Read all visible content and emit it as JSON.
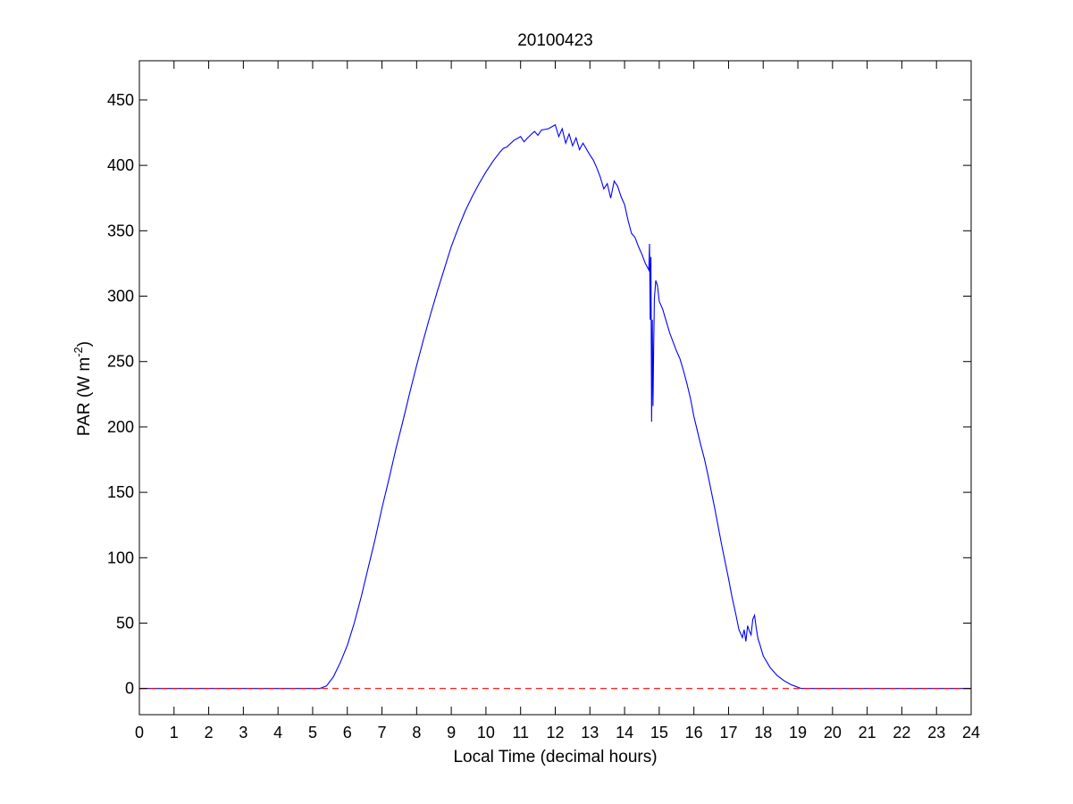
{
  "chart_data": {
    "type": "line",
    "title": "20100423",
    "xlabel": "Local Time (decimal hours)",
    "ylabel": {
      "prefix": "PAR (W m",
      "superscript": "-2",
      "suffix": ")"
    },
    "xlim": [
      0,
      24
    ],
    "ylim": [
      -20,
      480
    ],
    "xticks": [
      0,
      1,
      2,
      3,
      4,
      5,
      6,
      7,
      8,
      9,
      10,
      11,
      12,
      13,
      14,
      15,
      16,
      17,
      18,
      19,
      20,
      21,
      22,
      23,
      24
    ],
    "yticks": [
      0,
      50,
      100,
      150,
      200,
      250,
      300,
      350,
      400,
      450
    ],
    "grid": false,
    "colors": {
      "par": "#0000ff",
      "zero": "#ff0000",
      "axes": "#000000"
    },
    "series": [
      {
        "key": "par",
        "style": "solid",
        "x": [
          0,
          1,
          2,
          3,
          4,
          5,
          5.2,
          5.4,
          5.6,
          5.8,
          6,
          6.2,
          6.4,
          6.6,
          6.8,
          7,
          7.2,
          7.4,
          7.6,
          7.8,
          8,
          8.2,
          8.4,
          8.6,
          8.8,
          9,
          9.2,
          9.4,
          9.6,
          9.8,
          10,
          10.2,
          10.4,
          10.5,
          10.6,
          10.8,
          11,
          11.1,
          11.2,
          11.4,
          11.5,
          11.6,
          11.8,
          12,
          12.1,
          12.2,
          12.3,
          12.4,
          12.5,
          12.6,
          12.7,
          12.8,
          13,
          13.1,
          13.2,
          13.3,
          13.4,
          13.5,
          13.6,
          13.7,
          13.8,
          13.9,
          14,
          14.1,
          14.2,
          14.3,
          14.4,
          14.5,
          14.6,
          14.7,
          14.72,
          14.74,
          14.76,
          14.78,
          14.8,
          14.82,
          14.84,
          14.86,
          14.9,
          14.95,
          15,
          15.1,
          15.2,
          15.3,
          15.4,
          15.5,
          15.6,
          15.7,
          15.8,
          15.9,
          16,
          16.1,
          16.2,
          16.3,
          16.4,
          16.5,
          16.6,
          16.7,
          16.8,
          16.9,
          17,
          17.1,
          17.2,
          17.3,
          17.4,
          17.45,
          17.5,
          17.55,
          17.6,
          17.65,
          17.7,
          17.75,
          17.8,
          17.85,
          17.9,
          18,
          18.2,
          18.4,
          18.6,
          18.8,
          19,
          19.1,
          19.2,
          20,
          21,
          22,
          23,
          24
        ],
        "y": [
          0,
          0,
          0,
          0,
          0,
          0,
          0,
          2,
          9,
          20,
          33,
          50,
          70,
          92,
          114,
          138,
          160,
          183,
          204,
          226,
          247,
          267,
          286,
          304,
          321,
          338,
          352,
          365,
          376,
          386,
          395,
          403,
          410,
          413,
          414,
          419,
          422,
          418,
          421,
          426,
          423,
          427,
          428,
          431,
          422,
          428,
          417,
          424,
          415,
          421,
          412,
          417,
          408,
          404,
          398,
          391,
          382,
          386,
          375,
          388,
          384,
          376,
          370,
          358,
          348,
          345,
          338,
          332,
          325,
          320,
          340,
          282,
          330,
          204,
          282,
          216,
          262,
          298,
          312,
          308,
          296,
          290,
          281,
          272,
          265,
          258,
          252,
          243,
          233,
          222,
          208,
          197,
          186,
          176,
          164,
          151,
          138,
          124,
          110,
          97,
          84,
          70,
          58,
          45,
          39,
          45,
          36,
          48,
          44,
          41,
          53,
          56,
          46,
          38,
          34,
          25,
          16,
          10,
          6,
          3,
          1,
          0,
          0,
          0,
          0,
          0,
          0,
          0
        ]
      },
      {
        "key": "zero",
        "style": "dashed",
        "x": [
          0,
          24
        ],
        "y": [
          0,
          0
        ]
      }
    ]
  }
}
